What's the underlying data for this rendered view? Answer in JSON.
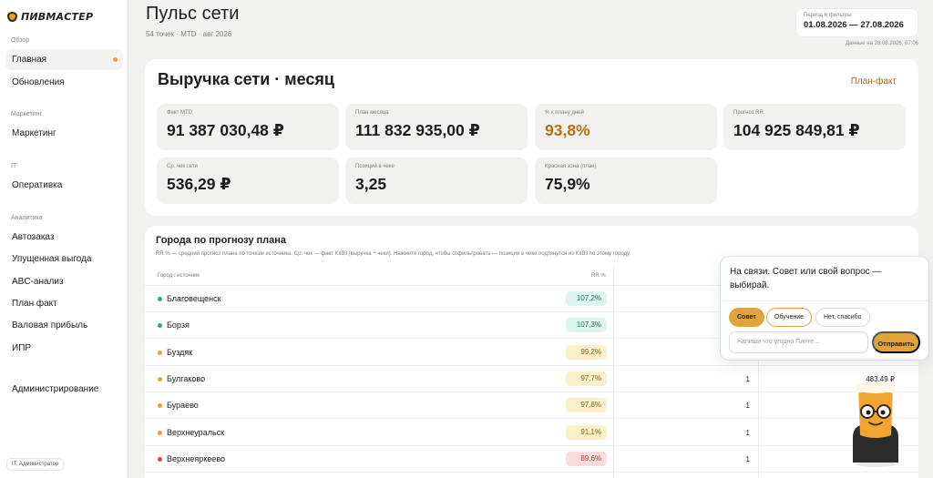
{
  "app": {
    "logo_text": "ПИВМАСТЕР"
  },
  "sidebar": {
    "sections": [
      {
        "label": "Обзор"
      },
      {
        "label": "Маркетинг"
      },
      {
        "label": "IT"
      },
      {
        "label": "Аналитика"
      }
    ],
    "items": [
      {
        "label": "Главная",
        "active": true
      },
      {
        "label": "Обновления"
      },
      {
        "label": "Маркетинг"
      },
      {
        "label": "Оперативка"
      },
      {
        "label": "Автозаказ"
      },
      {
        "label": "Упущенная выгода"
      },
      {
        "label": "ABC-анализ"
      },
      {
        "label": "План факт"
      },
      {
        "label": "Валовая прибыль"
      },
      {
        "label": "ИПР"
      },
      {
        "label": "Администрирование"
      }
    ],
    "user": "IT, Администратор"
  },
  "header": {
    "title": "Пульс сети",
    "subtitle": "54 точек · MTD · авг 2026",
    "period_label": "Период и фильтры",
    "period_value": "01.08.2026 — 27.08.2026",
    "data_date": "Данные на 28.08.2026, 07:06"
  },
  "revenue": {
    "title": "Выручка сети · месяц",
    "plan_fakt_link": "План-факт",
    "kpis": [
      {
        "label": "Факт MTD",
        "value": "91 387 030,48 ₽"
      },
      {
        "label": "План месяца",
        "value": "111 832 935,00 ₽"
      },
      {
        "label": "% к плану дней",
        "value": "93,8%"
      },
      {
        "label": "Прогноз RR",
        "value": "104 925 849,81 ₽"
      },
      {
        "label": "Ср. чек сети",
        "value": "536,29 ₽"
      },
      {
        "label": "Позиций в чеке",
        "value": "3,25"
      },
      {
        "label": "Красная зона (план)",
        "value": "75,9%"
      }
    ],
    "accent_color": "#b86f12"
  },
  "cities": {
    "title": "Города по прогнозу плана",
    "description": "RR % — средний прогноз плана по точкам источника. Ср. чек — факт KilBil (выручка ÷ чеки). Нажмите город, чтобы отфильтровать — позиции в чеке подтянутся из KilBil по этому городу.",
    "headers": {
      "city": "Город / источник",
      "rr": "RR %"
    },
    "rows": [
      {
        "city": "Благовещенск",
        "rr": "107,2%",
        "status": "green",
        "count": "",
        "amount": ""
      },
      {
        "city": "Борзя",
        "rr": "107,3%",
        "status": "green",
        "count": "",
        "amount": ""
      },
      {
        "city": "Буздяк",
        "rr": "99,2%",
        "status": "yellow",
        "count": "",
        "amount": ""
      },
      {
        "city": "Булгаково",
        "rr": "97,7%",
        "status": "yellow",
        "count": "1",
        "amount": "483,49 ₽"
      },
      {
        "city": "Бураево",
        "rr": "97,8%",
        "status": "yellow",
        "count": "1",
        "amount": ""
      },
      {
        "city": "Верхнеуральск",
        "rr": "91,1%",
        "status": "yellow",
        "count": "1",
        "amount": ""
      },
      {
        "city": "Верхнеяркеево",
        "rr": "89,6%",
        "status": "red",
        "count": "1",
        "amount": ""
      }
    ],
    "status_colors": {
      "green": "#1fae85",
      "yellow": "#e2a338",
      "red": "#e04848"
    }
  },
  "chat": {
    "title": "На связи. Совет или свой вопрос — выбирай.",
    "chips": [
      "Совет",
      "Обучение",
      "Нет, спасибо"
    ],
    "input_placeholder": "Напиши что угодно Пинте…",
    "send_label": "Отправить"
  },
  "icons": {
    "logo": "beer-drop-icon",
    "mascot": "beer-mascot-icon"
  }
}
